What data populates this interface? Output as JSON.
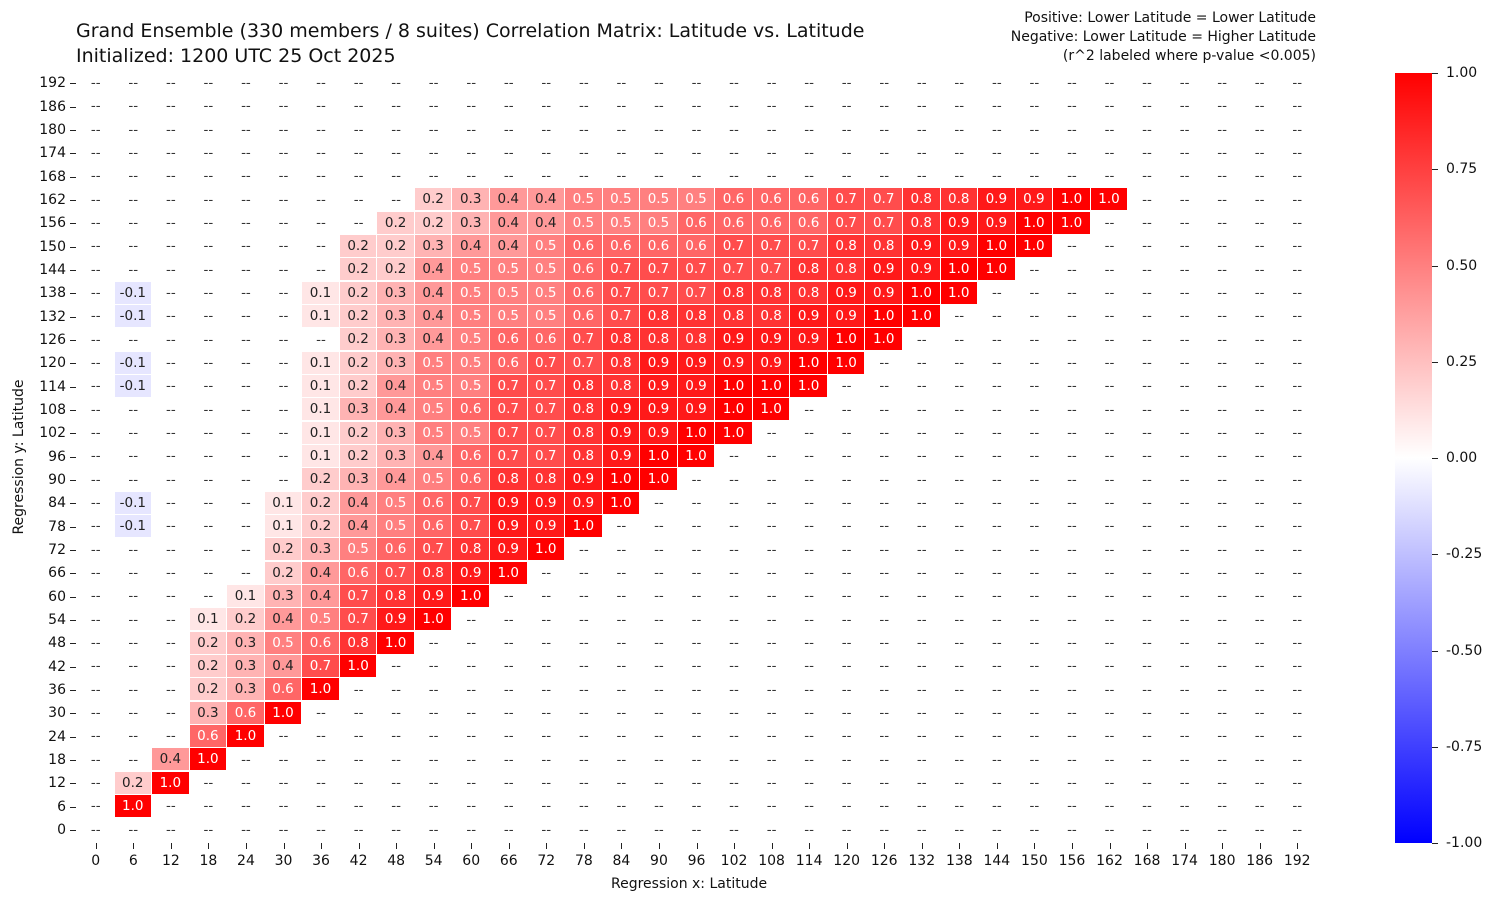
{
  "chart_data": {
    "type": "heatmap",
    "title": [
      "Grand Ensemble (330 members / 8 suites) Correlation Matrix: Latitude vs. Latitude",
      "Initialized: 1200 UTC 25 Oct 2025"
    ],
    "annotation": [
      "Positive: Lower Latitude = Lower Latitude",
      "Negative: Lower Latitude = Higher Latitude",
      "(r^2 labeled where p-value <0.005)"
    ],
    "xlabel": "Regression x: Latitude",
    "ylabel": "Regression y: Latitude",
    "x": [
      0,
      6,
      12,
      18,
      24,
      30,
      36,
      42,
      48,
      54,
      60,
      66,
      72,
      78,
      84,
      90,
      96,
      102,
      108,
      114,
      120,
      126,
      132,
      138,
      144,
      150,
      156,
      162,
      168,
      174,
      180,
      186,
      192
    ],
    "y": [
      192,
      186,
      180,
      174,
      168,
      162,
      156,
      150,
      144,
      138,
      132,
      126,
      120,
      114,
      108,
      102,
      96,
      90,
      84,
      78,
      72,
      66,
      60,
      54,
      48,
      42,
      36,
      30,
      24,
      18,
      12,
      6,
      0
    ],
    "missing_label": "--",
    "colorbar": {
      "range": [
        -1,
        1
      ],
      "ticks": [
        "1.00",
        "0.75",
        "0.50",
        "0.25",
        "0.00",
        "-0.25",
        "-0.50",
        "-0.75",
        "-1.00"
      ],
      "colormap": "bwr"
    },
    "rows": [
      {
        "y": 162,
        "cells": {
          "54": 0.2,
          "60": 0.3,
          "66": 0.4,
          "72": 0.4,
          "78": 0.5,
          "84": 0.5,
          "90": 0.5,
          "96": 0.5,
          "102": 0.6,
          "108": 0.6,
          "114": 0.6,
          "120": 0.7,
          "126": 0.7,
          "132": 0.8,
          "138": 0.8,
          "144": 0.9,
          "150": 0.9,
          "156": 1.0,
          "162": 1.0
        }
      },
      {
        "y": 156,
        "cells": {
          "48": 0.2,
          "54": 0.2,
          "60": 0.3,
          "66": 0.4,
          "72": 0.4,
          "78": 0.5,
          "84": 0.5,
          "90": 0.5,
          "96": 0.6,
          "102": 0.6,
          "108": 0.6,
          "114": 0.6,
          "120": 0.7,
          "126": 0.7,
          "132": 0.8,
          "138": 0.9,
          "144": 0.9,
          "150": 1.0,
          "156": 1.0
        }
      },
      {
        "y": 150,
        "cells": {
          "42": 0.2,
          "48": 0.2,
          "54": 0.3,
          "60": 0.4,
          "66": 0.4,
          "72": 0.5,
          "78": 0.6,
          "84": 0.6,
          "90": 0.6,
          "96": 0.6,
          "102": 0.7,
          "108": 0.7,
          "114": 0.7,
          "120": 0.8,
          "126": 0.8,
          "132": 0.9,
          "138": 0.9,
          "144": 1.0,
          "150": 1.0
        }
      },
      {
        "y": 144,
        "cells": {
          "42": 0.2,
          "48": 0.2,
          "54": 0.4,
          "60": 0.5,
          "66": 0.5,
          "72": 0.5,
          "78": 0.6,
          "84": 0.7,
          "90": 0.7,
          "96": 0.7,
          "102": 0.7,
          "108": 0.7,
          "114": 0.8,
          "120": 0.8,
          "126": 0.9,
          "132": 0.9,
          "138": 1.0,
          "144": 1.0
        }
      },
      {
        "y": 138,
        "cells": {
          "6": -0.1,
          "36": 0.1,
          "42": 0.2,
          "48": 0.3,
          "54": 0.4,
          "60": 0.5,
          "66": 0.5,
          "72": 0.5,
          "78": 0.6,
          "84": 0.7,
          "90": 0.7,
          "96": 0.7,
          "102": 0.8,
          "108": 0.8,
          "114": 0.8,
          "120": 0.9,
          "126": 0.9,
          "132": 1.0,
          "138": 1.0
        }
      },
      {
        "y": 132,
        "cells": {
          "6": -0.1,
          "36": 0.1,
          "42": 0.2,
          "48": 0.3,
          "54": 0.4,
          "60": 0.5,
          "66": 0.5,
          "72": 0.5,
          "78": 0.6,
          "84": 0.7,
          "90": 0.8,
          "96": 0.8,
          "102": 0.8,
          "108": 0.8,
          "114": 0.9,
          "120": 0.9,
          "126": 1.0,
          "132": 1.0
        }
      },
      {
        "y": 126,
        "cells": {
          "42": 0.2,
          "48": 0.3,
          "54": 0.4,
          "60": 0.5,
          "66": 0.6,
          "72": 0.6,
          "78": 0.7,
          "84": 0.8,
          "90": 0.8,
          "96": 0.8,
          "102": 0.9,
          "108": 0.9,
          "114": 0.9,
          "120": 1.0,
          "126": 1.0
        }
      },
      {
        "y": 120,
        "cells": {
          "6": -0.1,
          "36": 0.1,
          "42": 0.2,
          "48": 0.3,
          "54": 0.5,
          "60": 0.5,
          "66": 0.6,
          "72": 0.7,
          "78": 0.7,
          "84": 0.8,
          "90": 0.9,
          "96": 0.9,
          "102": 0.9,
          "108": 0.9,
          "114": 1.0,
          "120": 1.0
        }
      },
      {
        "y": 114,
        "cells": {
          "6": -0.1,
          "36": 0.1,
          "42": 0.2,
          "48": 0.4,
          "54": 0.5,
          "60": 0.5,
          "66": 0.7,
          "72": 0.7,
          "78": 0.8,
          "84": 0.8,
          "90": 0.9,
          "96": 0.9,
          "102": 1.0,
          "108": 1.0,
          "114": 1.0
        }
      },
      {
        "y": 108,
        "cells": {
          "36": 0.1,
          "42": 0.3,
          "48": 0.4,
          "54": 0.5,
          "60": 0.6,
          "66": 0.7,
          "72": 0.7,
          "78": 0.8,
          "84": 0.9,
          "90": 0.9,
          "96": 0.9,
          "102": 1.0,
          "108": 1.0
        }
      },
      {
        "y": 102,
        "cells": {
          "36": 0.1,
          "42": 0.2,
          "48": 0.3,
          "54": 0.5,
          "60": 0.5,
          "66": 0.7,
          "72": 0.7,
          "78": 0.8,
          "84": 0.9,
          "90": 0.9,
          "96": 1.0,
          "102": 1.0
        }
      },
      {
        "y": 96,
        "cells": {
          "36": 0.1,
          "42": 0.2,
          "48": 0.3,
          "54": 0.4,
          "60": 0.6,
          "66": 0.7,
          "72": 0.7,
          "78": 0.8,
          "84": 0.9,
          "90": 1.0,
          "96": 1.0
        }
      },
      {
        "y": 90,
        "cells": {
          "36": 0.2,
          "42": 0.3,
          "48": 0.4,
          "54": 0.5,
          "60": 0.6,
          "66": 0.8,
          "72": 0.8,
          "78": 0.9,
          "84": 1.0,
          "90": 1.0
        }
      },
      {
        "y": 84,
        "cells": {
          "6": -0.1,
          "30": 0.1,
          "36": 0.2,
          "42": 0.4,
          "48": 0.5,
          "54": 0.6,
          "60": 0.7,
          "66": 0.9,
          "72": 0.9,
          "78": 0.9,
          "84": 1.0
        }
      },
      {
        "y": 78,
        "cells": {
          "6": -0.1,
          "30": 0.1,
          "36": 0.2,
          "42": 0.4,
          "48": 0.5,
          "54": 0.6,
          "60": 0.7,
          "66": 0.9,
          "72": 0.9,
          "78": 1.0
        }
      },
      {
        "y": 72,
        "cells": {
          "30": 0.2,
          "36": 0.3,
          "42": 0.5,
          "48": 0.6,
          "54": 0.7,
          "60": 0.8,
          "66": 0.9,
          "72": 1.0
        }
      },
      {
        "y": 66,
        "cells": {
          "30": 0.2,
          "36": 0.4,
          "42": 0.6,
          "48": 0.7,
          "54": 0.8,
          "60": 0.9,
          "66": 1.0
        }
      },
      {
        "y": 60,
        "cells": {
          "24": 0.1,
          "30": 0.3,
          "36": 0.4,
          "42": 0.7,
          "48": 0.8,
          "54": 0.9,
          "60": 1.0
        }
      },
      {
        "y": 54,
        "cells": {
          "18": 0.1,
          "24": 0.2,
          "30": 0.4,
          "36": 0.5,
          "42": 0.7,
          "48": 0.9,
          "54": 1.0
        }
      },
      {
        "y": 48,
        "cells": {
          "18": 0.2,
          "24": 0.3,
          "30": 0.5,
          "36": 0.6,
          "42": 0.8,
          "48": 1.0
        }
      },
      {
        "y": 42,
        "cells": {
          "18": 0.2,
          "24": 0.3,
          "30": 0.4,
          "36": 0.7,
          "42": 1.0
        }
      },
      {
        "y": 36,
        "cells": {
          "18": 0.2,
          "24": 0.3,
          "30": 0.6,
          "36": 1.0
        }
      },
      {
        "y": 30,
        "cells": {
          "18": 0.3,
          "24": 0.6,
          "30": 1.0
        }
      },
      {
        "y": 24,
        "cells": {
          "18": 0.6,
          "24": 1.0
        }
      },
      {
        "y": 18,
        "cells": {
          "12": 0.4,
          "18": 1.0
        }
      },
      {
        "y": 12,
        "cells": {
          "6": 0.2,
          "12": 1.0
        }
      },
      {
        "y": 6,
        "cells": {
          "6": 1.0
        }
      }
    ]
  }
}
